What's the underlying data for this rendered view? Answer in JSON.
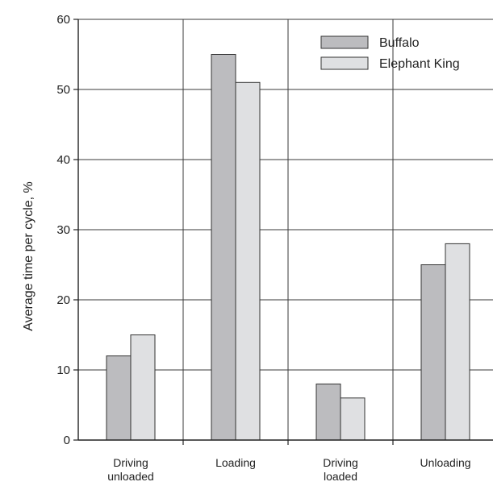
{
  "chart_data": {
    "type": "bar",
    "categories": [
      [
        "Driving",
        "unloaded"
      ],
      [
        "Loading"
      ],
      [
        "Driving",
        "loaded"
      ],
      [
        "Unloading"
      ]
    ],
    "series": [
      {
        "name": "Buffalo",
        "values": [
          12,
          55,
          8,
          25
        ],
        "color": "#bcbcbf"
      },
      {
        "name": "Elephant King",
        "values": [
          15,
          51,
          6,
          28
        ],
        "color": "#dfe0e2"
      }
    ],
    "ylabel": "Average time per cycle, %",
    "ylim": [
      0,
      60
    ],
    "yticks": [
      0,
      10,
      20,
      30,
      40,
      50,
      60
    ],
    "grid": true,
    "legend_position": "top-right"
  }
}
